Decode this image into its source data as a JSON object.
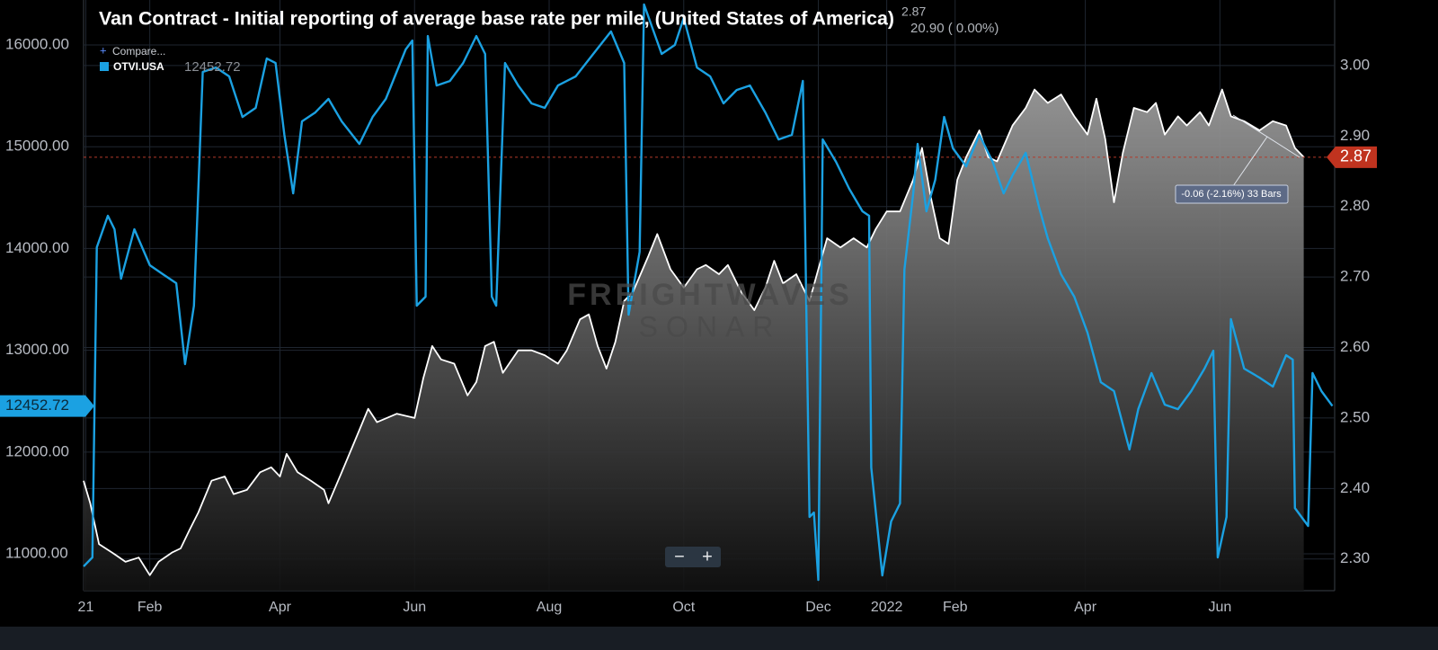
{
  "chart_data": {
    "type": "line",
    "title": "Van Contract - Initial reporting of average base rate per mile, (United States of America)",
    "header_stats": "20.90 ( 0.00%)",
    "compare_label": "Compare...",
    "annotation": "-0.06 (-2.16%) 33 Bars",
    "watermark": [
      "FREIGHTWAVES",
      "SONAR"
    ],
    "zoom_controls": [
      "−",
      "+"
    ],
    "xlim": [
      1,
      568
    ],
    "xticks": [
      {
        "value": 2,
        "label": "21"
      },
      {
        "value": 31,
        "label": "Feb"
      },
      {
        "value": 90,
        "label": "Apr"
      },
      {
        "value": 151,
        "label": "Jun"
      },
      {
        "value": 212,
        "label": "Aug"
      },
      {
        "value": 273,
        "label": "Oct"
      },
      {
        "value": 334,
        "label": "Dec"
      },
      {
        "value": 365,
        "label": "2022"
      },
      {
        "value": 396,
        "label": "Feb"
      },
      {
        "value": 455,
        "label": "Apr"
      },
      {
        "value": 516,
        "label": "Jun"
      }
    ],
    "ylim": [
      10638,
      16442
    ],
    "yticks": [
      {
        "value": 11000,
        "label": "11000.00"
      },
      {
        "value": 12000,
        "label": "12000.00"
      },
      {
        "value": 13000,
        "label": "13000.00"
      },
      {
        "value": 14000,
        "label": "14000.00"
      },
      {
        "value": 15000,
        "label": "15000.00"
      },
      {
        "value": 16000,
        "label": "16000.00"
      }
    ],
    "y2lim": [
      2.255,
      3.093
    ],
    "y2ticks": [
      {
        "value": 2.3,
        "label": "2.30"
      },
      {
        "value": 2.4,
        "label": "2.40"
      },
      {
        "value": 2.5,
        "label": "2.50"
      },
      {
        "value": 2.6,
        "label": "2.60"
      },
      {
        "value": 2.7,
        "label": "2.70"
      },
      {
        "value": 2.8,
        "label": "2.80"
      },
      {
        "value": 2.9,
        "label": "2.90"
      },
      {
        "value": 3.0,
        "label": "3.00"
      }
    ],
    "grid": true,
    "series": [
      {
        "name": "OTVI.USA",
        "color": "#1ba1e2",
        "axis": "y",
        "x": [
          1,
          5,
          7,
          12,
          15,
          18,
          24,
          31,
          37,
          43,
          47,
          51,
          55,
          61,
          67,
          73,
          79,
          84,
          88,
          92,
          96,
          100,
          106,
          112,
          118,
          126,
          132,
          138,
          147,
          150,
          152,
          156,
          157,
          161,
          167,
          173,
          179,
          183,
          186,
          188,
          192,
          198,
          204,
          210,
          216,
          224,
          232,
          240,
          246,
          248,
          253,
          255,
          263,
          269,
          273,
          279,
          285,
          291,
          297,
          303,
          310,
          316,
          322,
          327,
          330,
          332,
          334,
          336,
          342,
          348,
          354,
          357,
          358,
          363,
          367,
          371,
          373,
          377,
          379,
          383,
          387,
          391,
          395,
          401,
          407,
          413,
          418,
          422,
          428,
          434,
          438,
          444,
          450,
          456,
          462,
          468,
          475,
          479,
          485,
          491,
          497,
          503,
          509,
          513,
          515,
          519,
          521,
          527,
          534,
          540,
          546,
          549,
          550,
          556,
          558,
          562,
          567
        ],
        "values": [
          10876,
          10965,
          14012,
          14322,
          14189,
          13703,
          14189,
          13836,
          13747,
          13659,
          12864,
          13438,
          15735,
          15779,
          15691,
          15293,
          15382,
          15867,
          15823,
          15117,
          14542,
          15249,
          15337,
          15470,
          15249,
          15028,
          15293,
          15470,
          15956,
          16044,
          13438,
          13527,
          16088,
          15602,
          15646,
          15823,
          16088,
          15912,
          13527,
          13438,
          15823,
          15602,
          15426,
          15382,
          15602,
          15691,
          15912,
          16133,
          15823,
          13350,
          13968,
          16398,
          15912,
          16000,
          16265,
          15779,
          15691,
          15426,
          15558,
          15602,
          15337,
          15072,
          15117,
          15647,
          11362,
          11406,
          10744,
          15072,
          14852,
          14587,
          14366,
          14322,
          11848,
          10788,
          11318,
          11495,
          13792,
          14542,
          15028,
          14366,
          14675,
          15293,
          14984,
          14807,
          15117,
          14852,
          14542,
          14719,
          14940,
          14410,
          14101,
          13747,
          13527,
          13173,
          12687,
          12599,
          12025,
          12422,
          12776,
          12466,
          12422,
          12599,
          12820,
          12996,
          10965,
          11362,
          13306,
          12820,
          12731,
          12643,
          12952,
          12908,
          11450,
          11274,
          12776,
          12599,
          12452.72
        ]
      },
      {
        "name": "Van Contract",
        "color": "#ffffff",
        "axis": "y2",
        "area": true,
        "x": [
          1,
          4,
          8,
          14,
          20,
          26,
          31,
          35,
          41,
          45,
          49,
          53,
          59,
          65,
          69,
          75,
          81,
          86,
          90,
          93,
          98,
          104,
          110,
          112,
          118,
          124,
          130,
          134,
          143,
          151,
          155,
          159,
          163,
          169,
          175,
          179,
          183,
          187,
          191,
          198,
          204,
          210,
          216,
          220,
          226,
          230,
          234,
          238,
          242,
          246,
          250,
          257,
          261,
          267,
          273,
          279,
          283,
          289,
          293,
          299,
          305,
          310,
          314,
          318,
          324,
          330,
          334,
          338,
          344,
          350,
          356,
          360,
          365,
          371,
          377,
          381,
          385,
          389,
          393,
          397,
          401,
          407,
          411,
          415,
          422,
          428,
          432,
          438,
          444,
          450,
          456,
          460,
          464,
          468,
          472,
          477,
          483,
          487,
          491,
          497,
          501,
          507,
          511,
          517,
          521,
          527,
          534,
          540,
          546,
          550,
          554
        ],
        "values": [
          2.411,
          2.379,
          2.321,
          2.309,
          2.296,
          2.302,
          2.277,
          2.296,
          2.309,
          2.315,
          2.341,
          2.366,
          2.411,
          2.417,
          2.392,
          2.398,
          2.423,
          2.43,
          2.417,
          2.449,
          2.423,
          2.411,
          2.398,
          2.379,
          2.423,
          2.468,
          2.513,
          2.494,
          2.506,
          2.5,
          2.557,
          2.602,
          2.583,
          2.577,
          2.532,
          2.551,
          2.602,
          2.608,
          2.564,
          2.596,
          2.596,
          2.589,
          2.577,
          2.596,
          2.64,
          2.647,
          2.602,
          2.57,
          2.608,
          2.666,
          2.679,
          2.73,
          2.761,
          2.711,
          2.685,
          2.711,
          2.717,
          2.704,
          2.717,
          2.679,
          2.653,
          2.685,
          2.723,
          2.691,
          2.704,
          2.666,
          2.711,
          2.755,
          2.742,
          2.755,
          2.742,
          2.768,
          2.793,
          2.793,
          2.838,
          2.883,
          2.813,
          2.755,
          2.747,
          2.838,
          2.87,
          2.908,
          2.87,
          2.864,
          2.915,
          2.94,
          2.966,
          2.947,
          2.959,
          2.928,
          2.902,
          2.953,
          2.896,
          2.806,
          2.876,
          2.94,
          2.934,
          2.947,
          2.902,
          2.928,
          2.915,
          2.934,
          2.915,
          2.966,
          2.928,
          2.921,
          2.908,
          2.921,
          2.915,
          2.883,
          2.87
        ]
      }
    ]
  }
}
